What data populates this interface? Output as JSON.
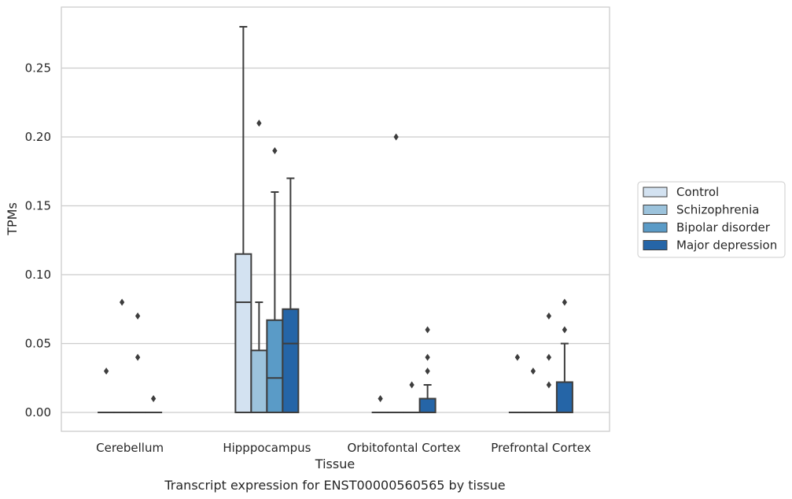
{
  "chart_data": {
    "type": "box",
    "title": "",
    "caption": "Transcript expression for ENST00000560565 by tissue",
    "xlabel": "Tissue",
    "ylabel": "TPMs",
    "ylim": [
      -0.014,
      0.295
    ],
    "yticks": [
      0.0,
      0.05,
      0.1,
      0.15,
      0.2,
      0.25
    ],
    "ytick_labels": [
      "0.00",
      "0.05",
      "0.10",
      "0.15",
      "0.20",
      "0.25"
    ],
    "grid": "horizontal",
    "legend_position": "right",
    "categories": [
      "Cerebellum",
      "Hipppocampus",
      "Orbitofontal Cortex",
      "Prefrontal Cortex"
    ],
    "series": [
      {
        "name": "Control",
        "color": "#d3e2f1",
        "boxes": [
          {
            "q1": 0,
            "median": 0,
            "q3": 0,
            "whisker_low": 0,
            "whisker_high": 0,
            "outliers": [
              0.03
            ]
          },
          {
            "q1": 0,
            "median": 0.08,
            "q3": 0.115,
            "whisker_low": 0,
            "whisker_high": 0.28,
            "outliers": []
          },
          {
            "q1": 0,
            "median": 0,
            "q3": 0,
            "whisker_low": 0,
            "whisker_high": 0,
            "outliers": [
              0.01
            ]
          },
          {
            "q1": 0,
            "median": 0,
            "q3": 0,
            "whisker_low": 0,
            "whisker_high": 0,
            "outliers": [
              0.04
            ]
          }
        ]
      },
      {
        "name": "Schizophrenia",
        "color": "#9cc3dc",
        "boxes": [
          {
            "q1": 0,
            "median": 0,
            "q3": 0,
            "whisker_low": 0,
            "whisker_high": 0,
            "outliers": [
              0.08
            ]
          },
          {
            "q1": 0,
            "median": 0,
            "q3": 0.045,
            "whisker_low": 0,
            "whisker_high": 0.08,
            "outliers": [
              0.21
            ]
          },
          {
            "q1": 0,
            "median": 0,
            "q3": 0,
            "whisker_low": 0,
            "whisker_high": 0,
            "outliers": [
              0.2
            ]
          },
          {
            "q1": 0,
            "median": 0,
            "q3": 0,
            "whisker_low": 0,
            "whisker_high": 0,
            "outliers": [
              0.03
            ]
          }
        ]
      },
      {
        "name": "Bipolar disorder",
        "color": "#5a9bc7",
        "boxes": [
          {
            "q1": 0,
            "median": 0,
            "q3": 0,
            "whisker_low": 0,
            "whisker_high": 0,
            "outliers": [
              0.04,
              0.07
            ]
          },
          {
            "q1": 0,
            "median": 0.025,
            "q3": 0.067,
            "whisker_low": 0,
            "whisker_high": 0.16,
            "outliers": [
              0.19
            ]
          },
          {
            "q1": 0,
            "median": 0,
            "q3": 0,
            "whisker_low": 0,
            "whisker_high": 0,
            "outliers": [
              0.02
            ]
          },
          {
            "q1": 0,
            "median": 0,
            "q3": 0,
            "whisker_low": 0,
            "whisker_high": 0,
            "outliers": [
              0.02,
              0.04,
              0.07
            ]
          }
        ]
      },
      {
        "name": "Major depression",
        "color": "#2565a7",
        "boxes": [
          {
            "q1": 0,
            "median": 0,
            "q3": 0,
            "whisker_low": 0,
            "whisker_high": 0,
            "outliers": [
              0.01
            ]
          },
          {
            "q1": 0,
            "median": 0.05,
            "q3": 0.075,
            "whisker_low": 0,
            "whisker_high": 0.17,
            "outliers": []
          },
          {
            "q1": 0,
            "median": 0,
            "q3": 0.01,
            "whisker_low": 0,
            "whisker_high": 0.02,
            "outliers": [
              0.03,
              0.04,
              0.06
            ]
          },
          {
            "q1": 0,
            "median": 0,
            "q3": 0.022,
            "whisker_low": 0,
            "whisker_high": 0.05,
            "outliers": [
              0.06,
              0.08
            ]
          }
        ]
      }
    ]
  }
}
